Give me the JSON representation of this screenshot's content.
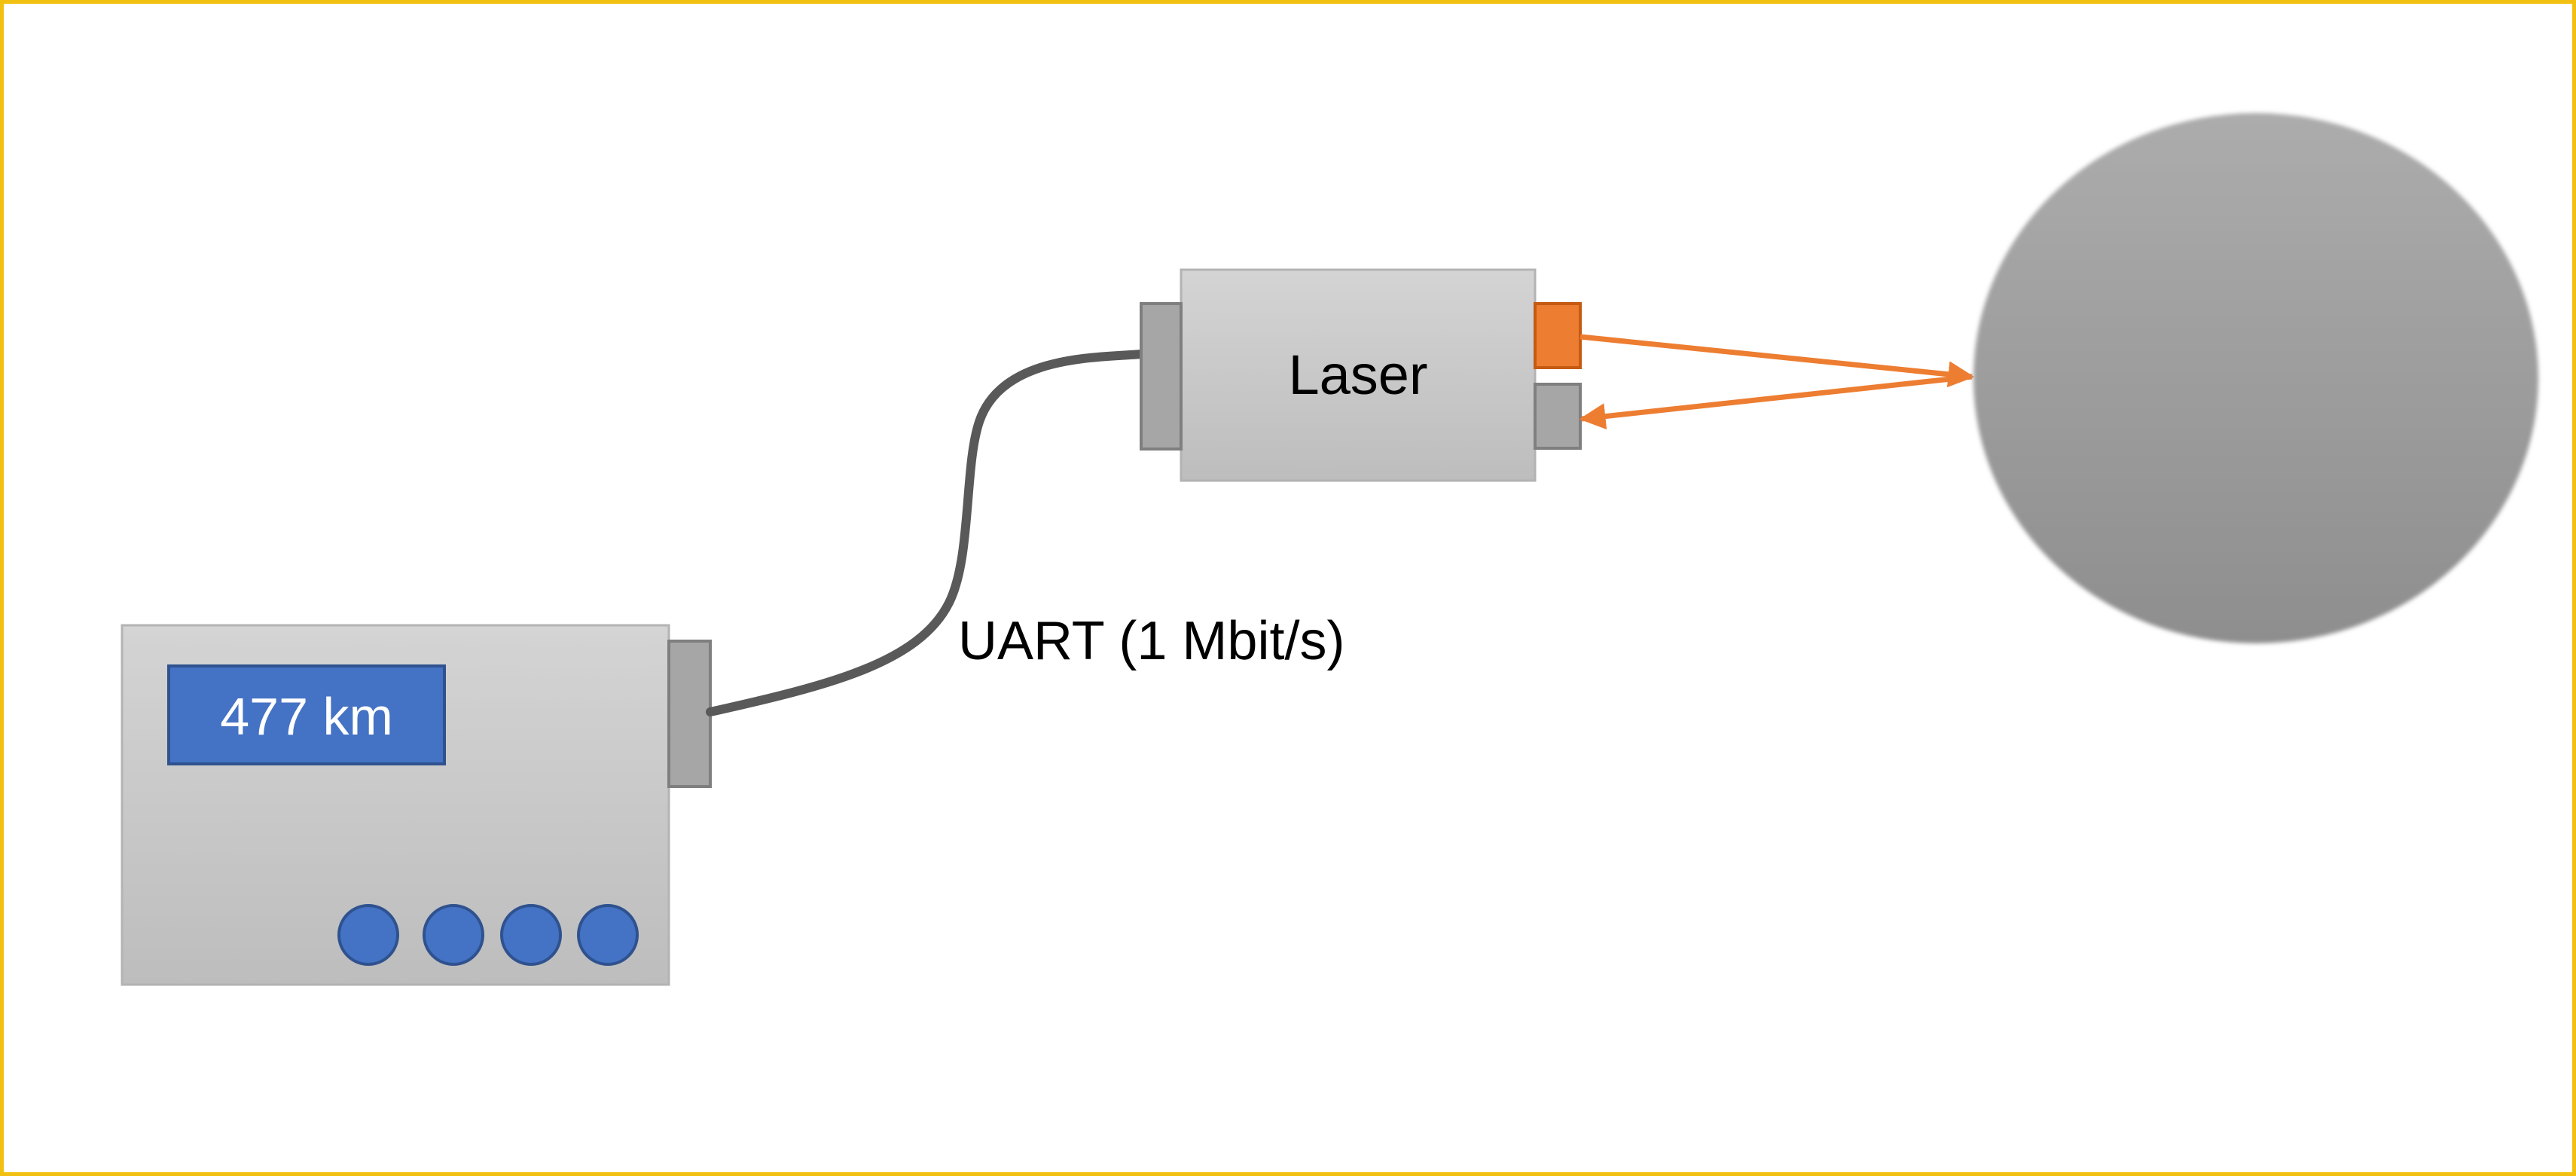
{
  "display": {
    "distance_text": "477 km"
  },
  "laser": {
    "label": "Laser"
  },
  "cable": {
    "label": "UART (1 Mbit/s)"
  },
  "controller": {
    "button_count": 4
  },
  "colors": {
    "frame": "#f2c010",
    "device_fill_top": "#d4d4d4",
    "device_fill_bottom": "#bdbdbd",
    "connector": "#a6a6a6",
    "display": "#4472c4",
    "buttons": "#4472c4",
    "emitter": "#ed7d31",
    "beam": "#ed7d31",
    "cable": "#595959",
    "target_top": "#acacac",
    "target_bottom": "#8e8e8e"
  }
}
